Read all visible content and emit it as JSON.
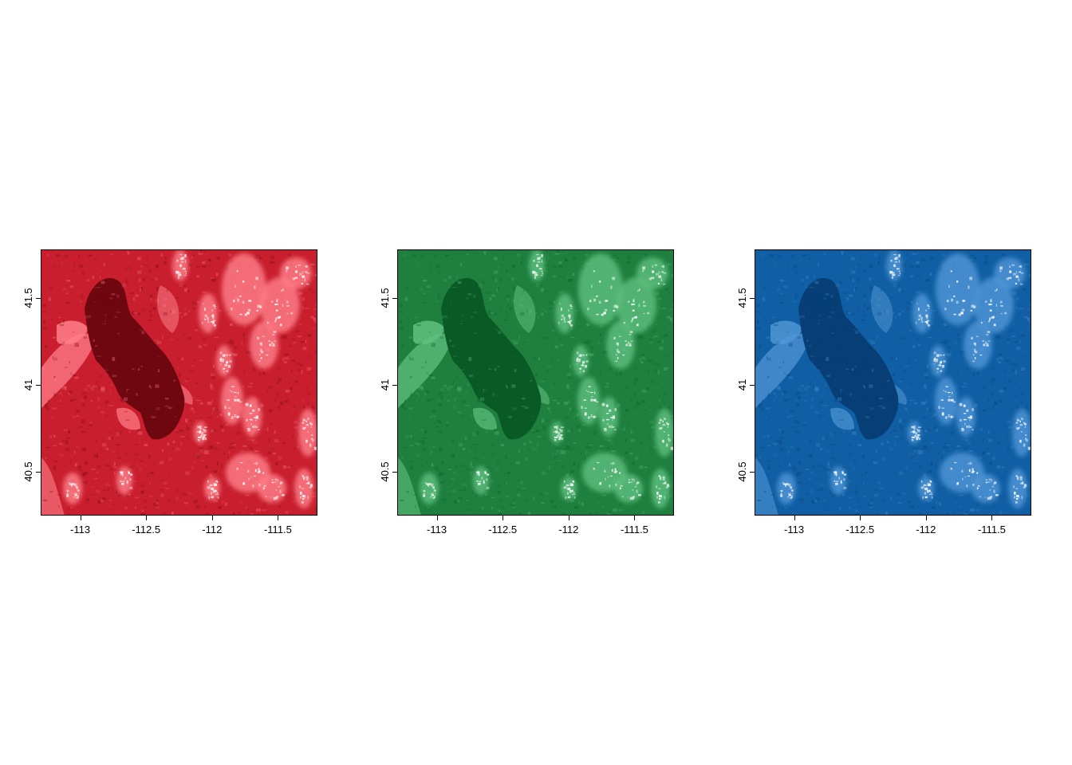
{
  "axes": {
    "x_ticks": [
      {
        "value": -113,
        "label": "-113"
      },
      {
        "value": -112.5,
        "label": "-112.5"
      },
      {
        "value": -112,
        "label": "-112"
      },
      {
        "value": -111.5,
        "label": "-111.5"
      }
    ],
    "y_ticks": [
      {
        "value": 41.5,
        "label": "41.5"
      },
      {
        "value": 41,
        "label": "41"
      },
      {
        "value": 40.5,
        "label": "40.5"
      }
    ],
    "xlim": [
      -113.3,
      -111.2
    ],
    "ylim": [
      40.25,
      41.78
    ]
  },
  "panels": [
    {
      "band": "red",
      "palette": {
        "dark": "#6e0710",
        "mid": "#c81e2e",
        "light": "#ff7f8a",
        "bright": "#ffffff"
      }
    },
    {
      "band": "green",
      "palette": {
        "dark": "#0a5a26",
        "mid": "#1e7f3e",
        "light": "#5fbf7f",
        "bright": "#ffffff"
      }
    },
    {
      "band": "blue",
      "palette": {
        "dark": "#063e75",
        "mid": "#105ea3",
        "light": "#4f96d6",
        "bright": "#ffffff"
      }
    }
  ]
}
